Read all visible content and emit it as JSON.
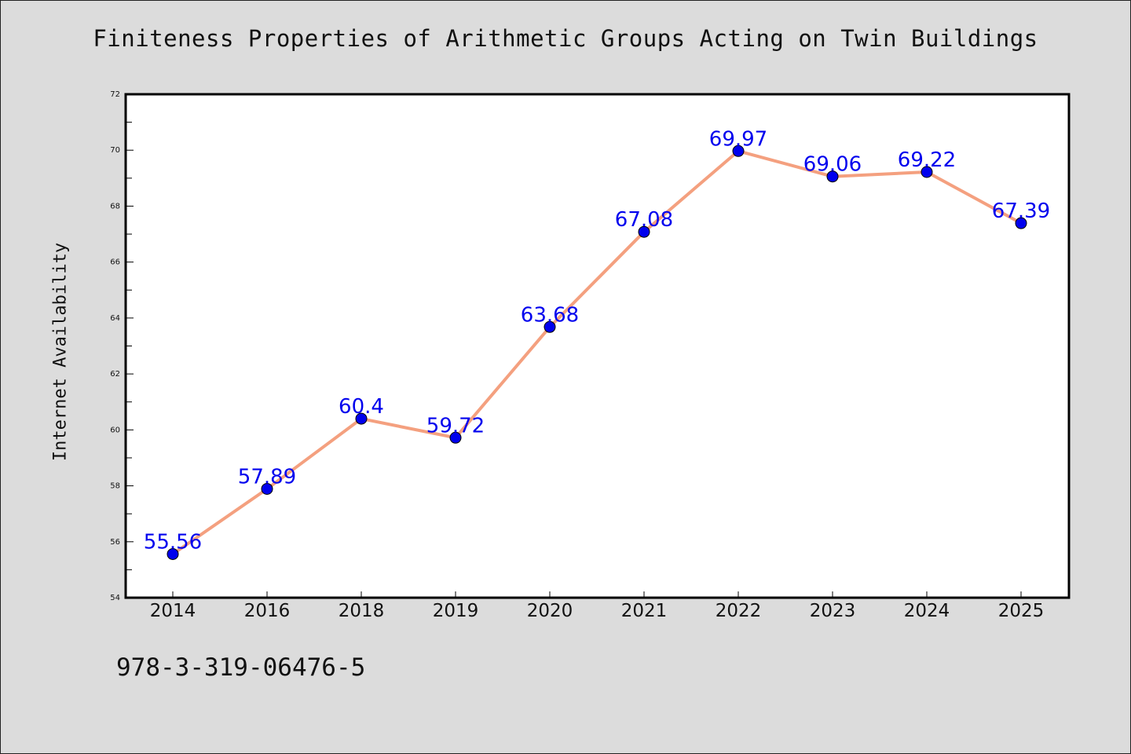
{
  "chart": {
    "title": "Finiteness Properties of Arithmetic Groups Acting on Twin Buildings",
    "ylabel": "Internet Availability",
    "footer_text": "978-3-319-06476-5"
  },
  "colors": {
    "background": "#dcdcdc",
    "plot_bg": "#ffffff",
    "line": "#f4a07f",
    "marker": "#0000ee",
    "data_label": "#0000ee"
  },
  "chart_data": {
    "type": "line",
    "categories": [
      "2014",
      "2016",
      "2018",
      "2019",
      "2020",
      "2021",
      "2022",
      "2023",
      "2024",
      "2025"
    ],
    "values": [
      55.56,
      57.89,
      60.4,
      59.72,
      63.68,
      67.08,
      69.97,
      69.06,
      69.22,
      67.39
    ],
    "data_labels": [
      "55.56",
      "57.89",
      "60.4",
      "59.72",
      "63.68",
      "67.08",
      "69.97",
      "69.06",
      "69.22",
      "67.39"
    ],
    "title": "Finiteness Properties of Arithmetic Groups Acting on Twin Buildings",
    "xlabel": "",
    "ylabel": "Internet Availability",
    "ylim": [
      54,
      72
    ],
    "yticks": [
      "54",
      "56",
      "58",
      "60",
      "62",
      "64",
      "66",
      "68",
      "70",
      "72"
    ],
    "grid": false,
    "legend": "none"
  }
}
